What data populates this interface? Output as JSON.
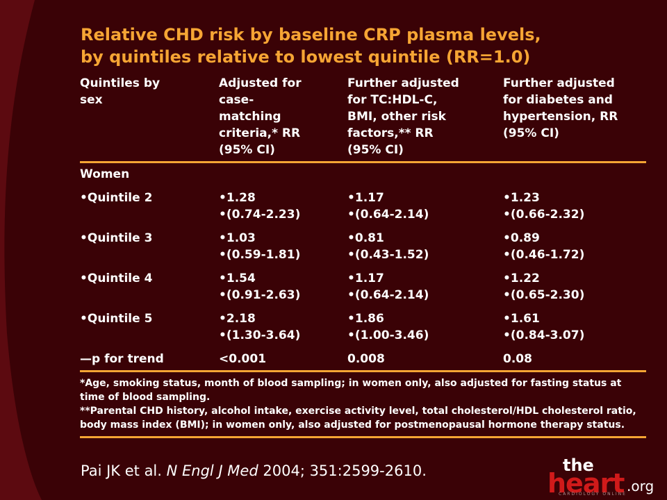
{
  "title": {
    "line1": "Relative CHD risk by baseline CRP plasma levels,",
    "line2": "by quintiles relative to lowest quintile (RR=1.0)"
  },
  "table": {
    "headers": [
      [
        "Quintiles by",
        "sex"
      ],
      [
        "Adjusted for",
        "case-",
        "matching",
        "criteria,* RR",
        "(95% CI)"
      ],
      [
        "Further adjusted",
        "for TC:HDL-C,",
        "BMI, other risk",
        "factors,** RR",
        "(95% CI)"
      ],
      [
        "Further adjusted",
        "for diabetes and",
        "hypertension, RR",
        "(95% CI)"
      ]
    ],
    "group_label": "Women",
    "rows": [
      {
        "label": "•Quintile 2",
        "c1": [
          "•1.28",
          "•(0.74-2.23)"
        ],
        "c2": [
          "•1.17",
          "•(0.64-2.14)"
        ],
        "c3": [
          "•1.23",
          "•(0.66-2.32)"
        ]
      },
      {
        "label": "•Quintile 3",
        "c1": [
          "•1.03",
          "•(0.59-1.81)"
        ],
        "c2": [
          "•0.81",
          "•(0.43-1.52)"
        ],
        "c3": [
          "•0.89",
          "•(0.46-1.72)"
        ]
      },
      {
        "label": "•Quintile 4",
        "c1": [
          "•1.54",
          "•(0.91-2.63)"
        ],
        "c2": [
          "•1.17",
          "•(0.64-2.14)"
        ],
        "c3": [
          "•1.22",
          "•(0.65-2.30)"
        ]
      },
      {
        "label": "•Quintile 5",
        "c1": [
          "•2.18",
          "•(1.30-3.64)"
        ],
        "c2": [
          "•1.86",
          "•(1.00-3.46)"
        ],
        "c3": [
          "•1.61",
          "•(0.84-3.07)"
        ]
      }
    ],
    "trend": {
      "label": "—p for trend",
      "c1": "<0.001",
      "c2": "0.008",
      "c3": "0.08"
    },
    "footnotes": [
      "*Age, smoking status, month of blood sampling; in women only, also adjusted for fasting status at time of blood sampling.",
      "**Parental CHD history, alcohol intake, exercise activity level, total cholesterol/HDL cholesterol ratio, body mass index (BMI); in women only, also adjusted for postmenopausal hormone therapy status."
    ]
  },
  "citation": {
    "authors": "Pai JK et al.",
    "journal": "N Engl J Med",
    "details": "2004; 351:2599-2610."
  },
  "logo": {
    "the": "the",
    "heart": "heart",
    "org": ".org",
    "tagline": "CARDIOLOGY ONLINE"
  },
  "colors": {
    "background": "#3a0206",
    "background_left": "#5a0a10",
    "title": "#f6a534",
    "rule": "#f6a534",
    "logo_heart": "#d01a1a"
  }
}
